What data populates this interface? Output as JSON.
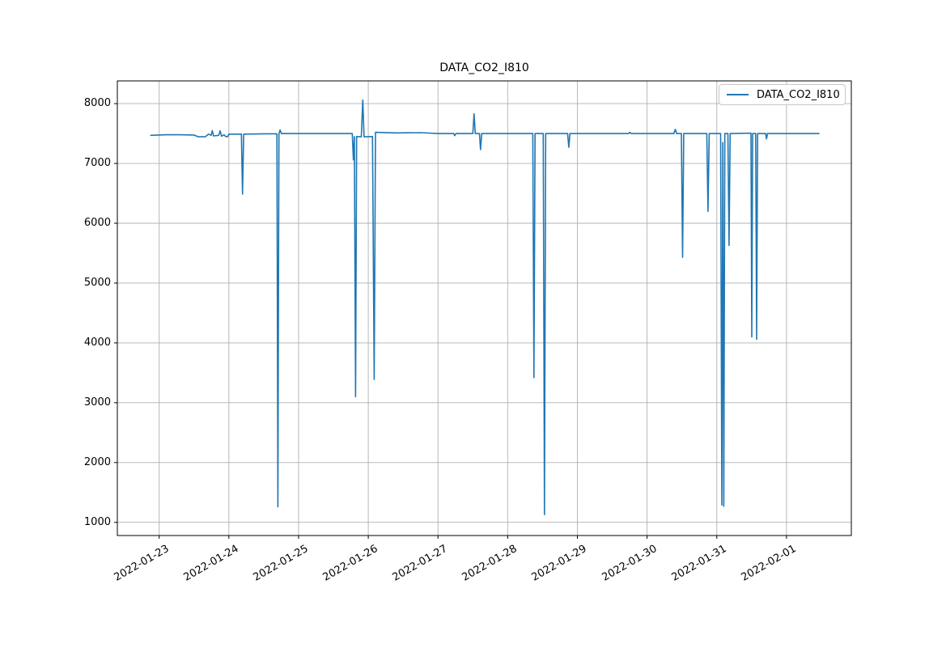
{
  "figure": {
    "title": "DATA_CO2_I810",
    "background_color": "#ffffff",
    "axes_edge_color": "#000000",
    "grid_color": "#b0b0b0"
  },
  "legend": {
    "position": "upper right",
    "entries": [
      {
        "label": "DATA_CO2_I810",
        "color": "#1f77b4"
      }
    ]
  },
  "chart_data": {
    "type": "line",
    "title": "DATA_CO2_I810",
    "xlabel": "",
    "ylabel": "",
    "grid": true,
    "legend_position": "upper right",
    "x_unit": "days since 2022-01-23 00:00",
    "x_tick_positions": [
      0,
      1,
      2,
      3,
      4,
      5,
      6,
      7,
      8,
      9
    ],
    "x_tick_labels": [
      "2022-01-23",
      "2022-01-24",
      "2022-01-25",
      "2022-01-26",
      "2022-01-27",
      "2022-01-28",
      "2022-01-29",
      "2022-01-30",
      "2022-01-31",
      "2022-02-01"
    ],
    "y_ticks": [
      1000,
      2000,
      3000,
      4000,
      5000,
      6000,
      7000,
      8000
    ],
    "xlim": [
      -0.6,
      9.93
    ],
    "ylim": [
      780,
      8380
    ],
    "baseline_value": 7500,
    "series": [
      {
        "name": "DATA_CO2_I810",
        "color": "#1f77b4",
        "points": [
          [
            -0.12,
            7470
          ],
          [
            0.1,
            7480
          ],
          [
            0.3,
            7480
          ],
          [
            0.5,
            7475
          ],
          [
            0.56,
            7445
          ],
          [
            0.66,
            7445
          ],
          [
            0.71,
            7490
          ],
          [
            0.745,
            7470
          ],
          [
            0.762,
            7550
          ],
          [
            0.78,
            7460
          ],
          [
            0.855,
            7470
          ],
          [
            0.875,
            7545
          ],
          [
            0.895,
            7455
          ],
          [
            0.93,
            7480
          ],
          [
            0.955,
            7450
          ],
          [
            0.985,
            7450
          ],
          [
            1.0,
            7490
          ],
          [
            1.18,
            7490
          ],
          [
            1.196,
            6490
          ],
          [
            1.212,
            7490
          ],
          [
            1.5,
            7495
          ],
          [
            1.69,
            7495
          ],
          [
            1.703,
            1260
          ],
          [
            1.718,
            7490
          ],
          [
            1.735,
            7560
          ],
          [
            1.755,
            7500
          ],
          [
            2.2,
            7500
          ],
          [
            2.6,
            7500
          ],
          [
            2.77,
            7500
          ],
          [
            2.787,
            7060
          ],
          [
            2.8,
            7450
          ],
          [
            2.818,
            3100
          ],
          [
            2.833,
            7450
          ],
          [
            2.9,
            7445
          ],
          [
            2.921,
            8060
          ],
          [
            2.94,
            7445
          ],
          [
            3.06,
            7450
          ],
          [
            3.085,
            3390
          ],
          [
            3.103,
            7520
          ],
          [
            3.4,
            7510
          ],
          [
            3.75,
            7515
          ],
          [
            4.0,
            7500
          ],
          [
            4.225,
            7500
          ],
          [
            4.24,
            7465
          ],
          [
            4.258,
            7500
          ],
          [
            4.5,
            7500
          ],
          [
            4.518,
            7830
          ],
          [
            4.535,
            7500
          ],
          [
            4.595,
            7500
          ],
          [
            4.611,
            7230
          ],
          [
            4.628,
            7500
          ],
          [
            5.0,
            7500
          ],
          [
            5.36,
            7500
          ],
          [
            5.377,
            3420
          ],
          [
            5.393,
            7500
          ],
          [
            5.51,
            7500
          ],
          [
            5.528,
            1130
          ],
          [
            5.545,
            7500
          ],
          [
            5.86,
            7500
          ],
          [
            5.877,
            7270
          ],
          [
            5.893,
            7500
          ],
          [
            6.4,
            7500
          ],
          [
            6.735,
            7500
          ],
          [
            6.752,
            7520
          ],
          [
            6.77,
            7500
          ],
          [
            7.1,
            7500
          ],
          [
            7.385,
            7500
          ],
          [
            7.404,
            7570
          ],
          [
            7.425,
            7500
          ],
          [
            7.492,
            7500
          ],
          [
            7.509,
            5430
          ],
          [
            7.526,
            7500
          ],
          [
            7.857,
            7500
          ],
          [
            7.874,
            6200
          ],
          [
            7.891,
            7500
          ],
          [
            8.055,
            7500
          ],
          [
            8.072,
            1290
          ],
          [
            8.086,
            7350
          ],
          [
            8.1,
            1270
          ],
          [
            8.115,
            7500
          ],
          [
            8.16,
            7500
          ],
          [
            8.176,
            5630
          ],
          [
            8.192,
            7500
          ],
          [
            8.42,
            7505
          ],
          [
            8.475,
            7505
          ],
          [
            8.49,
            7505
          ],
          [
            8.502,
            4100
          ],
          [
            8.515,
            7500
          ],
          [
            8.558,
            7500
          ],
          [
            8.572,
            4060
          ],
          [
            8.586,
            7500
          ],
          [
            8.7,
            7500
          ],
          [
            8.713,
            7410
          ],
          [
            8.727,
            7500
          ],
          [
            9.1,
            7500
          ],
          [
            9.466,
            7500
          ]
        ]
      }
    ]
  }
}
